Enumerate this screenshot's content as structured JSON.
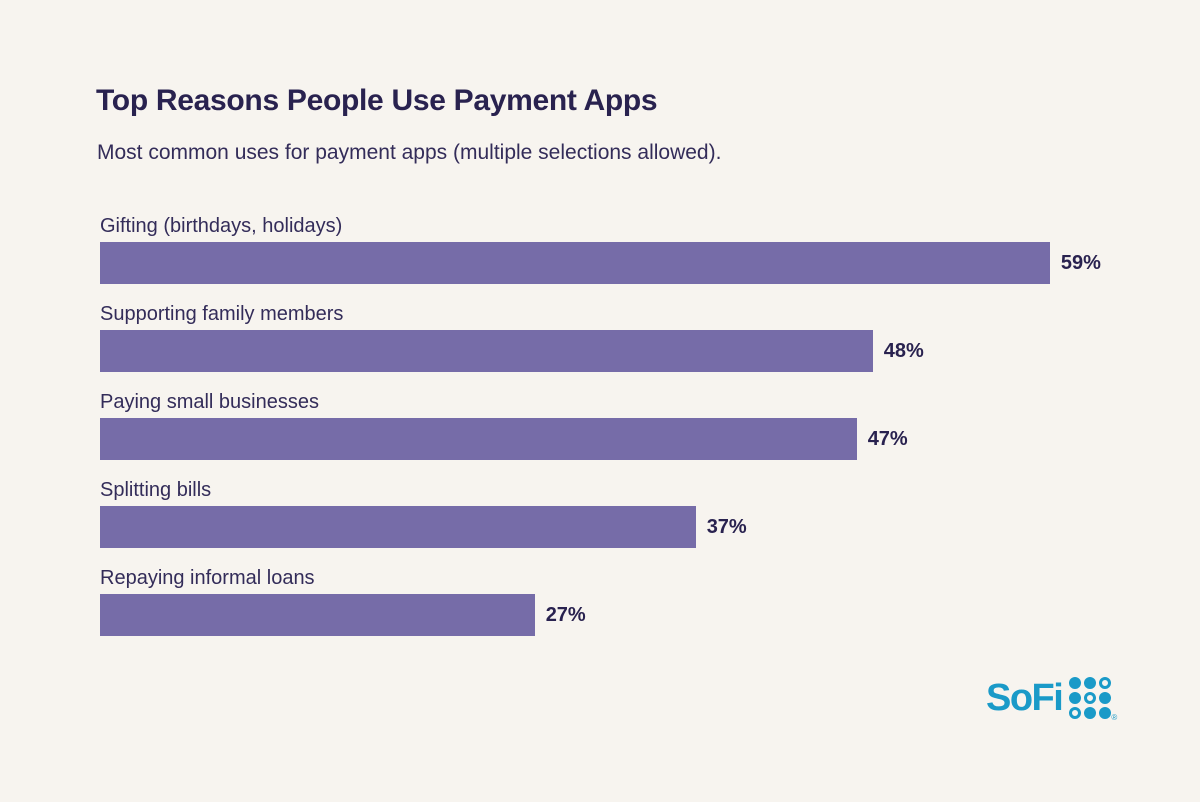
{
  "page": {
    "background": "#f7f4ef",
    "ink_color": "#29224f",
    "ink_soft_color": "#332c59"
  },
  "header": {
    "title": "Top Reasons People Use Payment Apps",
    "subtitle": "Most common uses for payment apps (multiple selections allowed)."
  },
  "chart_data": {
    "type": "bar",
    "orientation": "horizontal",
    "title": "Top Reasons People Use Payment Apps",
    "subtitle": "Most common uses for payment apps (multiple selections allowed).",
    "categories": [
      "Gifting (birthdays, holidays)",
      "Supporting family members",
      "Paying small businesses",
      "Splitting bills",
      "Repaying informal loans"
    ],
    "values": [
      59,
      48,
      47,
      37,
      27
    ],
    "value_labels": [
      "59%",
      "48%",
      "47%",
      "37%",
      "27%"
    ],
    "value_suffix": "%",
    "xlim": [
      0,
      62
    ],
    "grid": false,
    "legend": false,
    "bar_color": "#766ca8",
    "value_label_position": "right-of-bar"
  },
  "branding": {
    "logo_text": "SoFi",
    "logo_color": "#1a9ac8",
    "registered_mark": "®",
    "logo_dot_pattern": [
      [
        "filled",
        "filled",
        "ring"
      ],
      [
        "filled",
        "ring",
        "filled"
      ],
      [
        "ring",
        "filled",
        "filled"
      ]
    ]
  }
}
